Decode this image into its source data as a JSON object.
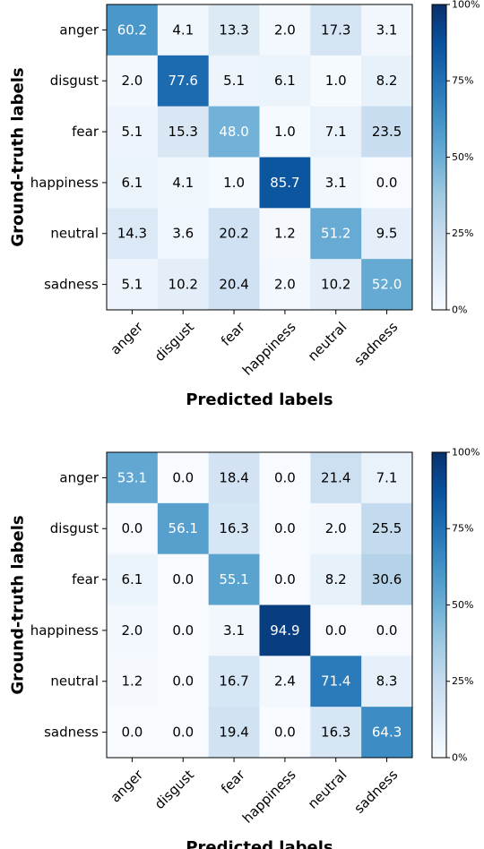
{
  "chart_data": [
    {
      "type": "heatmap",
      "xlabel": "Predicted labels",
      "ylabel": "Ground-truth labels",
      "x_categories": [
        "anger",
        "disgust",
        "fear",
        "happiness",
        "neutral",
        "sadness"
      ],
      "y_categories": [
        "anger",
        "disgust",
        "fear",
        "happiness",
        "neutral",
        "sadness"
      ],
      "values": [
        [
          "60.2",
          "4.1",
          "13.3",
          "2.0",
          "17.3",
          "3.1"
        ],
        [
          "2.0",
          "77.6",
          "5.1",
          "6.1",
          "1.0",
          "8.2"
        ],
        [
          "5.1",
          "15.3",
          "48.0",
          "1.0",
          "7.1",
          "23.5"
        ],
        [
          "6.1",
          "4.1",
          "1.0",
          "85.7",
          "3.1",
          "0.0"
        ],
        [
          "14.3",
          "3.6",
          "20.2",
          "1.2",
          "51.2",
          "9.5"
        ],
        [
          "5.1",
          "10.2",
          "20.4",
          "2.0",
          "10.2",
          "52.0"
        ]
      ],
      "colorbar": {
        "range": [
          0,
          100
        ],
        "ticks": [
          "0%",
          "25%",
          "50%",
          "75%",
          "100%"
        ],
        "colormap": "Blues"
      }
    },
    {
      "type": "heatmap",
      "xlabel": "Predicted labels",
      "ylabel": "Ground-truth labels",
      "x_categories": [
        "anger",
        "disgust",
        "fear",
        "happiness",
        "neutral",
        "sadness"
      ],
      "y_categories": [
        "anger",
        "disgust",
        "fear",
        "happiness",
        "neutral",
        "sadness"
      ],
      "values": [
        [
          "53.1",
          "0.0",
          "18.4",
          "0.0",
          "21.4",
          "7.1"
        ],
        [
          "0.0",
          "56.1",
          "16.3",
          "0.0",
          "2.0",
          "25.5"
        ],
        [
          "6.1",
          "0.0",
          "55.1",
          "0.0",
          "8.2",
          "30.6"
        ],
        [
          "2.0",
          "0.0",
          "3.1",
          "94.9",
          "0.0",
          "0.0"
        ],
        [
          "1.2",
          "0.0",
          "16.7",
          "2.4",
          "71.4",
          "8.3"
        ],
        [
          "0.0",
          "0.0",
          "19.4",
          "0.0",
          "16.3",
          "64.3"
        ]
      ],
      "colorbar": {
        "range": [
          0,
          100
        ],
        "ticks": [
          "0%",
          "25%",
          "50%",
          "75%",
          "100%"
        ],
        "colormap": "Blues"
      }
    }
  ]
}
